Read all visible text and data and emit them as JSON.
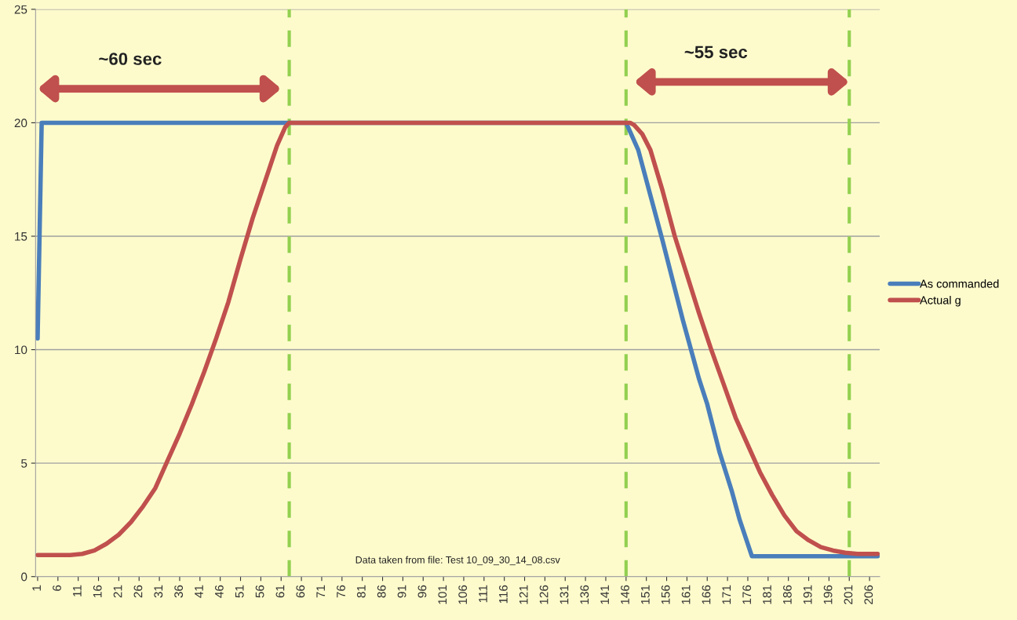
{
  "chart_data": {
    "type": "line",
    "xlim": [
      0.5,
      208.5
    ],
    "ylim": [
      0,
      25
    ],
    "yticks": [
      0,
      5,
      10,
      15,
      20,
      25
    ],
    "xticks": [
      1,
      6,
      11,
      16,
      21,
      26,
      31,
      36,
      41,
      46,
      51,
      56,
      61,
      66,
      71,
      76,
      81,
      86,
      91,
      96,
      101,
      106,
      111,
      116,
      121,
      126,
      131,
      136,
      141,
      146,
      151,
      156,
      161,
      166,
      171,
      176,
      181,
      186,
      191,
      196,
      201,
      206
    ],
    "series": [
      {
        "name": "As commanded",
        "color": "#4a7ebb",
        "x": [
          1,
          2,
          146,
          147,
          149,
          152,
          155,
          158,
          160,
          162,
          164,
          166,
          169,
          172,
          174,
          177,
          208
        ],
        "values": [
          10.5,
          20,
          20,
          19.6,
          18.8,
          16.8,
          14.8,
          12.7,
          11.3,
          10.0,
          8.7,
          7.6,
          5.5,
          3.8,
          2.5,
          0.9,
          0.9
        ]
      },
      {
        "name": "Actual g",
        "color": "#c0504d",
        "x": [
          1,
          9,
          12,
          15,
          18,
          21,
          24,
          27,
          30,
          33,
          36,
          39,
          42,
          45,
          48,
          51,
          54,
          57,
          60,
          62,
          63,
          147,
          148,
          150,
          152,
          155,
          158,
          161,
          164,
          167,
          170,
          173,
          176,
          179,
          182,
          185,
          188,
          191,
          194,
          197,
          200,
          203,
          208
        ],
        "values": [
          0.95,
          0.95,
          1.0,
          1.15,
          1.45,
          1.85,
          2.4,
          3.1,
          3.9,
          5.1,
          6.3,
          7.6,
          9.0,
          10.5,
          12.1,
          14.0,
          15.8,
          17.4,
          19.0,
          19.8,
          20,
          20,
          19.9,
          19.5,
          18.8,
          17.0,
          15.0,
          13.3,
          11.6,
          10.0,
          8.5,
          7.0,
          5.8,
          4.6,
          3.6,
          2.7,
          2.0,
          1.6,
          1.3,
          1.15,
          1.05,
          1.0,
          1.0
        ]
      }
    ],
    "ref_lines": [
      {
        "axis": "x",
        "value": 63,
        "color": "#92d050",
        "line_style": "dashed"
      },
      {
        "axis": "x",
        "value": 146,
        "color": "#92d050",
        "line_style": "dashed"
      },
      {
        "axis": "x",
        "value": 201,
        "color": "#92d050",
        "line_style": "dashed"
      }
    ],
    "annotations": [
      "~60 sec",
      "~55 sec",
      "Data taken from file: Test 10_09_30_14_08.csv"
    ],
    "grid": "y",
    "legend": "right",
    "marker": "none",
    "line_style": "solid"
  }
}
